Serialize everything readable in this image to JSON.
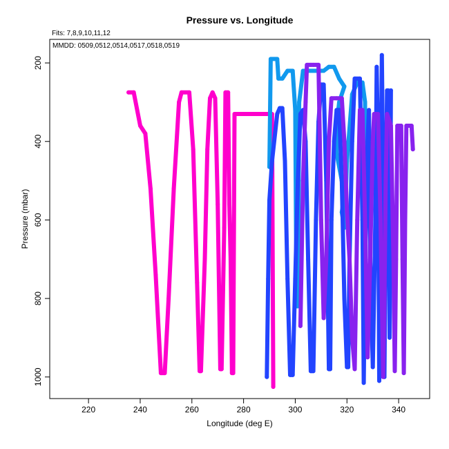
{
  "chart_data": {
    "type": "line",
    "title": "Pressure vs. Longitude",
    "annotations": [
      "Fits: 7,8,9,10,11,12",
      "MMDD: 0509,0512,0514,0517,0518,0519"
    ],
    "xlabel": "Longitude (deg E)",
    "ylabel": "Pressure (mbar)",
    "xlim": [
      205,
      352
    ],
    "ylim": [
      1055,
      140
    ],
    "y_inverted": true,
    "x_ticks": [
      220,
      240,
      260,
      280,
      300,
      320,
      340
    ],
    "y_ticks": [
      200,
      400,
      600,
      800,
      1000
    ],
    "grid": false,
    "series": [
      {
        "color": "#ff00cc",
        "points": [
          [
            235.5,
            275
          ],
          [
            237.5,
            275
          ],
          [
            240,
            360
          ],
          [
            242,
            380
          ],
          [
            244,
            520
          ],
          [
            246,
            740
          ],
          [
            248,
            990
          ],
          [
            249.5,
            990
          ],
          [
            251,
            800
          ],
          [
            253,
            520
          ],
          [
            255,
            300
          ],
          [
            256,
            275
          ],
          [
            259,
            275
          ],
          [
            260.5,
            420
          ],
          [
            262,
            760
          ],
          [
            263,
            985
          ],
          [
            263.5,
            985
          ],
          [
            265,
            700
          ],
          [
            266,
            420
          ],
          [
            267,
            290
          ],
          [
            268,
            275
          ],
          [
            269,
            290
          ],
          [
            270,
            560
          ],
          [
            271,
            980
          ],
          [
            271.5,
            980
          ],
          [
            272.5,
            620
          ],
          [
            273,
            275
          ],
          [
            274,
            275
          ],
          [
            274.5,
            560
          ],
          [
            275,
            700
          ],
          [
            275.5,
            990
          ],
          [
            276,
            990
          ],
          [
            276.5,
            330
          ],
          [
            281,
            330
          ],
          [
            286,
            330
          ],
          [
            289,
            330
          ],
          [
            291,
            330
          ],
          [
            291.5,
            1025
          ]
        ]
      },
      {
        "color": "#1199ee",
        "points": [
          [
            290,
            465
          ],
          [
            290.5,
            190
          ],
          [
            293,
            190
          ],
          [
            293.5,
            240
          ],
          [
            295,
            240
          ],
          [
            297,
            220
          ],
          [
            299,
            220
          ],
          [
            300,
            320
          ],
          [
            300.5,
            820
          ],
          [
            301,
            820
          ],
          [
            301.5,
            300
          ],
          [
            303,
            220
          ],
          [
            311,
            220
          ],
          [
            313,
            210
          ],
          [
            315,
            210
          ],
          [
            317,
            240
          ],
          [
            319,
            260
          ],
          [
            317,
            300
          ],
          [
            316,
            360
          ],
          [
            316,
            430
          ],
          [
            318,
            500
          ],
          [
            319,
            540
          ],
          [
            318,
            580
          ],
          [
            319,
            620
          ],
          [
            320,
            450
          ],
          [
            322,
            280
          ],
          [
            324,
            250
          ],
          [
            326,
            250
          ],
          [
            327,
            300
          ],
          [
            327,
            760
          ],
          [
            327.5,
            760
          ]
        ]
      },
      {
        "color": "#2244ff",
        "points": [
          [
            289,
            1000
          ],
          [
            289.5,
            750
          ],
          [
            290,
            550
          ],
          [
            291,
            450
          ],
          [
            293,
            330
          ],
          [
            294,
            315
          ],
          [
            295,
            315
          ],
          [
            296,
            450
          ],
          [
            297,
            750
          ],
          [
            298,
            995
          ],
          [
            299,
            995
          ],
          [
            300,
            750
          ],
          [
            301,
            500
          ],
          [
            302,
            330
          ],
          [
            303,
            320
          ],
          [
            304,
            400
          ],
          [
            305,
            700
          ],
          [
            306,
            985
          ],
          [
            307,
            985
          ],
          [
            308,
            600
          ],
          [
            309,
            350
          ],
          [
            310,
            255
          ],
          [
            311,
            255
          ],
          [
            312,
            500
          ],
          [
            313,
            980
          ],
          [
            313.5,
            980
          ],
          [
            314,
            600
          ],
          [
            315,
            400
          ],
          [
            316,
            320
          ],
          [
            317,
            320
          ],
          [
            318,
            500
          ],
          [
            319,
            800
          ],
          [
            320,
            975
          ],
          [
            320.5,
            975
          ],
          [
            321,
            700
          ],
          [
            322,
            400
          ],
          [
            323,
            240
          ],
          [
            325,
            240
          ],
          [
            326,
            600
          ],
          [
            326.5,
            1015
          ],
          [
            327,
            700
          ],
          [
            328,
            400
          ],
          [
            328.5,
            320
          ],
          [
            329,
            700
          ],
          [
            330,
            975
          ],
          [
            331,
            600
          ],
          [
            331.5,
            210
          ],
          [
            332,
            400
          ],
          [
            332.5,
            1010
          ],
          [
            333,
            600
          ],
          [
            333.5,
            180
          ],
          [
            334,
            500
          ],
          [
            334.5,
            1000
          ],
          [
            335,
            600
          ],
          [
            335.5,
            270
          ],
          [
            336,
            270
          ],
          [
            336.5,
            900
          ],
          [
            337,
            270
          ]
        ]
      },
      {
        "color": "#8822ee",
        "points": [
          [
            302,
            870
          ],
          [
            303,
            500
          ],
          [
            304,
            300
          ],
          [
            304.5,
            205
          ],
          [
            306,
            205
          ],
          [
            307,
            205
          ],
          [
            309,
            205
          ],
          [
            310,
            600
          ],
          [
            311,
            850
          ],
          [
            312,
            700
          ],
          [
            313,
            400
          ],
          [
            314,
            290
          ],
          [
            316,
            290
          ],
          [
            318,
            290
          ],
          [
            319,
            400
          ],
          [
            320,
            580
          ],
          [
            321,
            700
          ],
          [
            322,
            900
          ],
          [
            323,
            980
          ],
          [
            324,
            600
          ],
          [
            325,
            320
          ],
          [
            326,
            320
          ],
          [
            327,
            600
          ],
          [
            328,
            950
          ],
          [
            329,
            700
          ],
          [
            330,
            400
          ],
          [
            330.5,
            330
          ],
          [
            332,
            330
          ],
          [
            333,
            600
          ],
          [
            334,
            1000
          ],
          [
            334.5,
            800
          ],
          [
            335,
            500
          ],
          [
            335.5,
            330
          ],
          [
            337,
            360
          ],
          [
            338,
            700
          ],
          [
            338.5,
            985
          ],
          [
            339,
            700
          ],
          [
            339.5,
            360
          ],
          [
            341,
            360
          ],
          [
            341.5,
            700
          ],
          [
            342,
            990
          ],
          [
            342.5,
            600
          ],
          [
            343,
            360
          ],
          [
            344,
            360
          ],
          [
            345,
            360
          ],
          [
            345.5,
            420
          ]
        ]
      }
    ]
  }
}
